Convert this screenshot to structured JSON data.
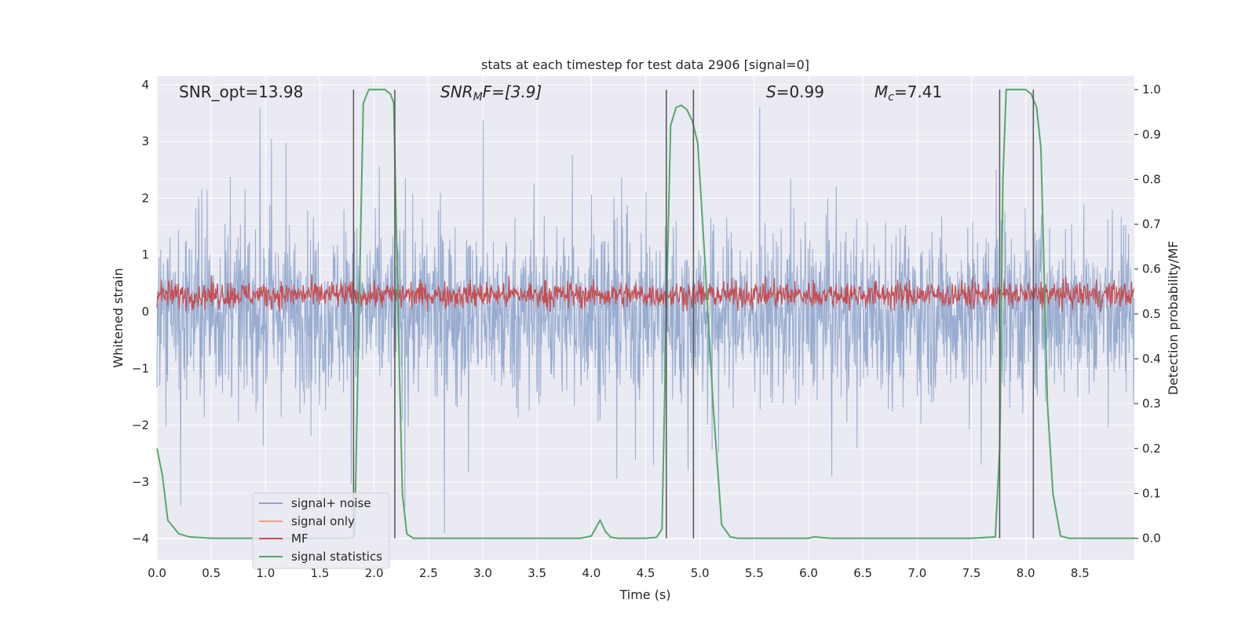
{
  "chart_data": {
    "type": "line",
    "title": "stats at each timestep for test data 2906 [signal=0]",
    "xlabel": "Time (s)",
    "ylabel": "Whitened strain",
    "y2label": "Detection probability/MF",
    "xlim": [
      0.0,
      9.0
    ],
    "ylim": [
      -4.37,
      4.15
    ],
    "y2lim": [
      -0.048,
      1.03
    ],
    "xticks": [
      "0.0",
      "0.5",
      "1.0",
      "1.5",
      "2.0",
      "2.5",
      "3.0",
      "3.5",
      "4.0",
      "4.5",
      "5.0",
      "5.5",
      "6.0",
      "6.5",
      "7.0",
      "7.5",
      "8.0",
      "8.5"
    ],
    "yticks": [
      "4",
      "3",
      "2",
      "1",
      "0",
      "−1",
      "−2",
      "−3",
      "−4"
    ],
    "y2ticks": [
      "1.0",
      "0.9",
      "0.8",
      "0.7",
      "0.6",
      "0.5",
      "0.4",
      "0.3",
      "0.2",
      "0.1",
      "0.0"
    ],
    "grid": true,
    "annotations": {
      "snr_opt": "SNR_opt=13.98",
      "snr_mf_main": "SNR",
      "snr_mf_sub": "M",
      "snr_mf_rest": "F=[3.9]",
      "s_main": "S",
      "s_rest": "=0.99",
      "mc_main": "M",
      "mc_sub": "c",
      "mc_rest": "=7.41"
    },
    "legend": {
      "placement": "lower-center-left",
      "entries": [
        "signal+ noise",
        "signal only",
        "MF",
        "signal statistics"
      ]
    },
    "colors": {
      "noise": "#8fa5cc",
      "signal": "#f0a07e",
      "mf": "#c44e52",
      "stats": "#55a868",
      "vline": "#555555",
      "bg": "#eaeaf2",
      "grid": "#ffffff"
    },
    "series": [
      {
        "name": "signal statistics",
        "axis": "right",
        "x": [
          0.0,
          0.05,
          0.1,
          0.2,
          0.3,
          0.5,
          1.0,
          1.5,
          1.78,
          1.82,
          1.86,
          1.9,
          1.95,
          2.0,
          2.05,
          2.1,
          2.15,
          2.18,
          2.22,
          2.26,
          2.3,
          2.36,
          2.45,
          2.6,
          3.0,
          3.5,
          3.9,
          4.0,
          4.08,
          4.13,
          4.18,
          4.25,
          4.5,
          4.6,
          4.65,
          4.69,
          4.73,
          4.78,
          4.83,
          4.88,
          4.93,
          4.98,
          5.05,
          5.12,
          5.2,
          5.28,
          5.35,
          5.5,
          6.0,
          6.05,
          6.2,
          6.5,
          7.0,
          7.5,
          7.72,
          7.76,
          7.79,
          7.82,
          7.88,
          7.95,
          8.0,
          8.05,
          8.1,
          8.14,
          8.2,
          8.25,
          8.32,
          8.4,
          8.6,
          9.0
        ],
        "values": [
          0.2,
          0.14,
          0.04,
          0.01,
          0.003,
          0.0,
          0.0,
          0.0,
          0.0,
          0.01,
          0.5,
          0.97,
          1.0,
          1.0,
          1.0,
          1.0,
          0.99,
          0.97,
          0.5,
          0.1,
          0.01,
          0.0,
          0.0,
          0.0,
          0.0,
          0.0,
          0.0,
          0.005,
          0.04,
          0.015,
          0.002,
          0.0,
          0.0,
          0.002,
          0.02,
          0.5,
          0.92,
          0.96,
          0.965,
          0.955,
          0.93,
          0.88,
          0.6,
          0.3,
          0.03,
          0.003,
          0.0,
          0.0,
          0.0,
          0.003,
          0.0,
          0.0,
          0.0,
          0.0,
          0.003,
          0.2,
          0.8,
          1.0,
          1.0,
          1.0,
          1.0,
          0.99,
          0.96,
          0.87,
          0.3,
          0.1,
          0.005,
          0.0,
          0.0,
          0.0
        ]
      }
    ],
    "vlines": [
      1.81,
      2.19,
      4.69,
      4.94,
      7.76,
      8.07
    ]
  }
}
